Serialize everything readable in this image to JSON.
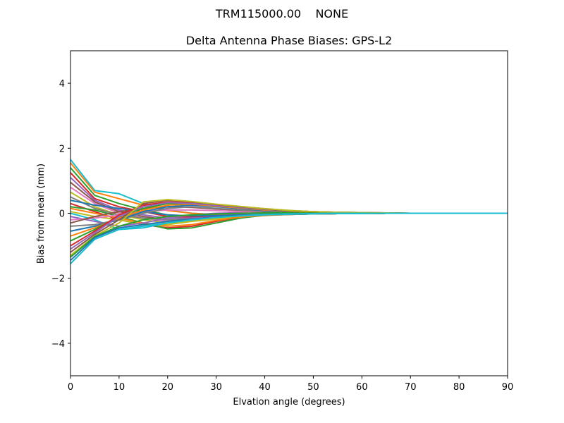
{
  "chart_data": {
    "type": "line",
    "suptitle": "TRM115000.00    NONE",
    "title": "Delta Antenna Phase Biases: GPS-L2",
    "xlabel": "Elvation angle (degrees)",
    "ylabel": "Bias from mean (mm)",
    "xlim": [
      0,
      90
    ],
    "ylim": [
      -5,
      5
    ],
    "xticks": [
      0,
      10,
      20,
      30,
      40,
      50,
      60,
      70,
      80,
      90
    ],
    "yticks": [
      -4,
      -2,
      0,
      2,
      4
    ],
    "ytick_labels": [
      "−4",
      "−2",
      "0",
      "2",
      "4"
    ],
    "grid": false,
    "legend": "none",
    "x": [
      0,
      5,
      10,
      15,
      20,
      25,
      30,
      35,
      40,
      45,
      50,
      55,
      60,
      65,
      70,
      75,
      80,
      85,
      90
    ],
    "series_note": "approximately 100 overlapping traces; representative traces listed",
    "series": [
      {
        "color": "#17becf",
        "values": [
          1.65,
          0.7,
          0.6,
          0.3,
          0.1,
          0.0,
          -0.05,
          -0.05,
          -0.03,
          -0.02,
          -0.02,
          -0.01,
          -0.01,
          0.0,
          0.0,
          0.0,
          0.0,
          0.0,
          0.0
        ]
      },
      {
        "color": "#ff7f0e",
        "values": [
          1.55,
          0.65,
          0.45,
          0.25,
          0.08,
          0.0,
          -0.04,
          -0.05,
          -0.04,
          -0.03,
          -0.02,
          -0.01,
          -0.01,
          0.0,
          0.0,
          0.0,
          0.0,
          0.0,
          0.0
        ]
      },
      {
        "color": "#2ca02c",
        "values": [
          1.4,
          0.55,
          0.3,
          0.1,
          -0.05,
          -0.1,
          -0.08,
          -0.06,
          -0.04,
          -0.03,
          -0.02,
          -0.01,
          -0.01,
          0.0,
          0.0,
          0.0,
          0.0,
          0.0,
          0.0
        ]
      },
      {
        "color": "#d62728",
        "values": [
          1.25,
          0.45,
          0.2,
          0.05,
          -0.1,
          -0.12,
          -0.1,
          -0.07,
          -0.05,
          -0.03,
          -0.02,
          -0.01,
          -0.01,
          0.0,
          0.0,
          0.0,
          0.0,
          0.0,
          0.0
        ]
      },
      {
        "color": "#9467bd",
        "values": [
          1.1,
          0.4,
          0.1,
          -0.05,
          -0.15,
          -0.15,
          -0.12,
          -0.08,
          -0.05,
          -0.03,
          -0.02,
          -0.01,
          -0.01,
          0.0,
          0.0,
          0.0,
          0.0,
          0.0,
          0.0
        ]
      },
      {
        "color": "#8c564b",
        "values": [
          0.95,
          0.35,
          0.05,
          -0.1,
          -0.2,
          -0.18,
          -0.13,
          -0.09,
          -0.06,
          -0.04,
          -0.02,
          -0.01,
          -0.01,
          0.0,
          0.0,
          0.0,
          0.0,
          0.0,
          0.0
        ]
      },
      {
        "color": "#e377c2",
        "values": [
          0.8,
          0.3,
          0.0,
          -0.15,
          -0.25,
          -0.2,
          -0.15,
          -0.1,
          -0.06,
          -0.04,
          -0.02,
          -0.01,
          -0.01,
          0.0,
          0.0,
          0.0,
          0.0,
          0.0,
          0.0
        ]
      },
      {
        "color": "#bcbd22",
        "values": [
          0.65,
          0.2,
          -0.05,
          -0.2,
          -0.3,
          -0.25,
          -0.18,
          -0.12,
          -0.07,
          -0.04,
          -0.02,
          -0.01,
          -0.01,
          0.0,
          0.0,
          0.0,
          0.0,
          0.0,
          0.0
        ]
      },
      {
        "color": "#7f7f7f",
        "values": [
          0.5,
          0.15,
          -0.05,
          -0.15,
          -0.2,
          -0.18,
          -0.13,
          -0.09,
          -0.06,
          -0.04,
          -0.02,
          -0.01,
          -0.01,
          0.0,
          0.0,
          0.0,
          0.0,
          0.0,
          0.0
        ]
      },
      {
        "color": "#1f77b4",
        "values": [
          0.4,
          0.25,
          0.15,
          0.05,
          -0.05,
          -0.08,
          -0.07,
          -0.05,
          -0.04,
          -0.03,
          -0.02,
          -0.01,
          -0.01,
          0.0,
          0.0,
          0.0,
          0.0,
          0.0,
          0.0
        ]
      },
      {
        "color": "#d62728",
        "values": [
          0.3,
          0.05,
          -0.2,
          -0.35,
          -0.45,
          -0.4,
          -0.25,
          -0.12,
          -0.05,
          -0.03,
          -0.02,
          -0.01,
          -0.01,
          0.0,
          0.0,
          0.0,
          0.0,
          0.0,
          0.0
        ]
      },
      {
        "color": "#2ca02c",
        "values": [
          0.2,
          0.1,
          -0.1,
          -0.3,
          -0.48,
          -0.45,
          -0.3,
          -0.15,
          -0.06,
          -0.03,
          -0.02,
          -0.01,
          -0.01,
          0.0,
          0.0,
          0.0,
          0.0,
          0.0,
          0.0
        ]
      },
      {
        "color": "#ff7f0e",
        "values": [
          0.15,
          0.0,
          -0.15,
          -0.3,
          -0.4,
          -0.35,
          -0.22,
          -0.12,
          -0.06,
          -0.03,
          -0.02,
          -0.01,
          -0.01,
          0.0,
          0.0,
          0.0,
          0.0,
          0.0,
          0.0
        ]
      },
      {
        "color": "#bcbd22",
        "values": [
          0.05,
          -0.1,
          -0.2,
          -0.35,
          -0.35,
          -0.25,
          -0.15,
          -0.08,
          -0.04,
          -0.02,
          -0.01,
          -0.01,
          0.0,
          0.0,
          0.0,
          0.0,
          0.0,
          0.0,
          0.0
        ]
      },
      {
        "color": "#17becf",
        "values": [
          0.0,
          -0.2,
          -0.5,
          -0.45,
          -0.3,
          -0.2,
          -0.12,
          -0.08,
          -0.05,
          -0.03,
          -0.02,
          -0.01,
          -0.01,
          0.0,
          0.0,
          0.0,
          0.0,
          0.0,
          0.0
        ]
      },
      {
        "color": "#9467bd",
        "values": [
          -0.1,
          -0.25,
          -0.4,
          -0.3,
          -0.15,
          -0.05,
          0.0,
          0.02,
          0.02,
          0.01,
          0.01,
          0.0,
          0.0,
          0.0,
          0.0,
          0.0,
          0.0,
          0.0,
          0.0
        ]
      },
      {
        "color": "#e377c2",
        "values": [
          -0.2,
          -0.15,
          -0.05,
          0.05,
          0.1,
          0.1,
          0.08,
          0.05,
          0.03,
          0.02,
          0.01,
          0.01,
          0.0,
          0.0,
          0.0,
          0.0,
          0.0,
          0.0,
          0.0
        ]
      },
      {
        "color": "#8c564b",
        "values": [
          -0.3,
          -0.1,
          0.05,
          0.15,
          0.2,
          0.18,
          0.13,
          0.09,
          0.06,
          0.04,
          0.02,
          0.01,
          0.01,
          0.0,
          0.0,
          0.0,
          0.0,
          0.0,
          0.0
        ]
      },
      {
        "color": "#7f7f7f",
        "values": [
          -0.4,
          -0.35,
          -0.2,
          0.0,
          0.15,
          0.2,
          0.15,
          0.1,
          0.06,
          0.04,
          0.02,
          0.01,
          0.01,
          0.0,
          0.0,
          0.0,
          0.0,
          0.0,
          0.0
        ]
      },
      {
        "color": "#1f77b4",
        "values": [
          -0.55,
          -0.4,
          -0.2,
          0.05,
          0.2,
          0.25,
          0.2,
          0.14,
          0.08,
          0.05,
          0.03,
          0.02,
          0.01,
          0.0,
          0.0,
          0.0,
          0.0,
          0.0,
          0.0
        ]
      },
      {
        "color": "#ff7f0e",
        "values": [
          -0.7,
          -0.45,
          -0.15,
          0.1,
          0.25,
          0.28,
          0.22,
          0.16,
          0.1,
          0.06,
          0.03,
          0.02,
          0.01,
          0.0,
          0.0,
          0.0,
          0.0,
          0.0,
          0.0
        ]
      },
      {
        "color": "#2ca02c",
        "values": [
          -0.85,
          -0.5,
          -0.1,
          0.15,
          0.3,
          0.3,
          0.25,
          0.18,
          0.12,
          0.07,
          0.04,
          0.02,
          0.01,
          0.01,
          0.0,
          0.0,
          0.0,
          0.0,
          0.0
        ]
      },
      {
        "color": "#d62728",
        "values": [
          -1.0,
          -0.55,
          -0.05,
          0.25,
          0.35,
          0.32,
          0.26,
          0.2,
          0.14,
          0.08,
          0.05,
          0.03,
          0.02,
          0.01,
          0.0,
          0.0,
          0.0,
          0.0,
          0.0
        ]
      },
      {
        "color": "#9467bd",
        "values": [
          -1.1,
          -0.6,
          -0.1,
          0.2,
          0.33,
          0.3,
          0.24,
          0.18,
          0.12,
          0.08,
          0.05,
          0.03,
          0.02,
          0.01,
          0.0,
          0.0,
          0.0,
          0.0,
          0.0
        ]
      },
      {
        "color": "#8c564b",
        "values": [
          -1.2,
          -0.65,
          -0.2,
          0.3,
          0.4,
          0.35,
          0.27,
          0.2,
          0.13,
          0.08,
          0.05,
          0.03,
          0.02,
          0.01,
          0.0,
          0.0,
          0.0,
          0.0,
          0.0
        ]
      },
      {
        "color": "#bcbd22",
        "values": [
          -1.3,
          -0.7,
          -0.3,
          0.35,
          0.42,
          0.36,
          0.28,
          0.21,
          0.14,
          0.09,
          0.05,
          0.03,
          0.02,
          0.01,
          0.0,
          0.0,
          0.0,
          0.0,
          0.0
        ]
      },
      {
        "color": "#2ca02c",
        "values": [
          -1.35,
          -0.72,
          -0.4,
          -0.2,
          -0.1,
          -0.05,
          -0.02,
          0.0,
          0.01,
          0.01,
          0.0,
          0.0,
          0.0,
          0.0,
          0.0,
          0.0,
          0.0,
          0.0,
          0.0
        ]
      },
      {
        "color": "#1f77b4",
        "values": [
          -1.45,
          -0.75,
          -0.45,
          -0.35,
          -0.25,
          -0.18,
          -0.12,
          -0.07,
          -0.04,
          -0.02,
          -0.01,
          0.0,
          0.0,
          0.0,
          0.0,
          0.0,
          0.0,
          0.0,
          0.0
        ]
      },
      {
        "color": "#17becf",
        "values": [
          -1.55,
          -0.8,
          -0.5,
          -0.4,
          -0.3,
          -0.2,
          -0.13,
          -0.08,
          -0.04,
          -0.02,
          -0.01,
          0.0,
          0.0,
          0.0,
          0.0,
          0.0,
          0.0,
          0.0,
          0.0
        ]
      }
    ]
  }
}
